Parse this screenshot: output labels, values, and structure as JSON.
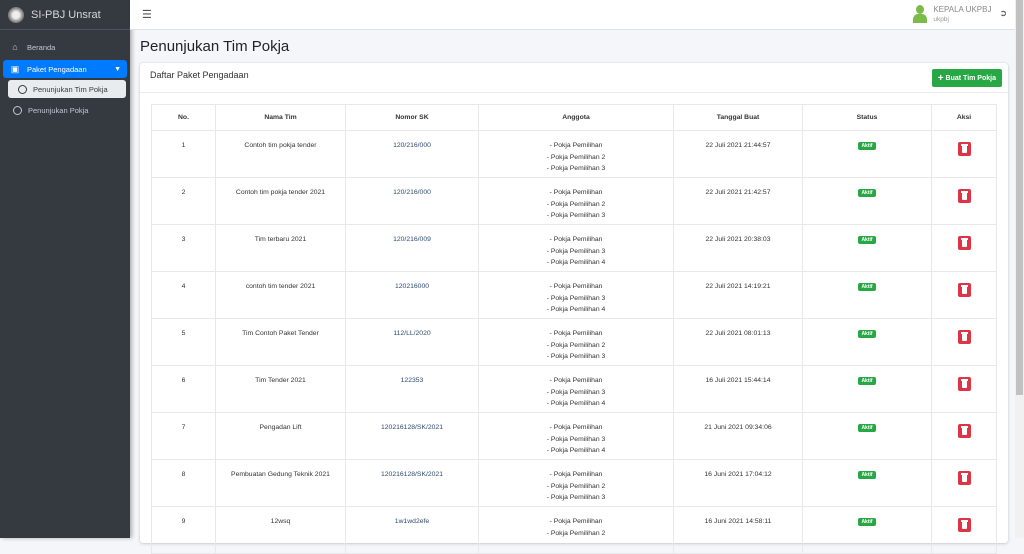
{
  "app": {
    "brand": "SI-PBJ Unsrat"
  },
  "sidebar": {
    "items": [
      {
        "label": "Beranda",
        "icon": "home-icon"
      },
      {
        "label": "Paket Pengadaan",
        "icon": "box-icon",
        "active": true
      },
      {
        "label": "Penunjukan Tim Pokja",
        "icon": "circle-icon",
        "current": true
      },
      {
        "label": "Penunjukan Pokja",
        "icon": "circle-icon"
      }
    ]
  },
  "header": {
    "user_name": "KEPALA UKPBJ",
    "user_role": "ukpbj"
  },
  "page": {
    "title": "Penunjukan Tim Pokja",
    "card_title": "Daftar Paket Pengadaan",
    "add_button": "Buat Tim Pokja"
  },
  "table": {
    "columns": [
      "No.",
      "Nama Tim",
      "Nomor SK",
      "Anggota",
      "Tanggal Buat",
      "Status",
      "Aksi"
    ],
    "rows": [
      {
        "no": "1",
        "nama": "Contoh tim pokja tender",
        "sk": "120/216/000",
        "anggota": [
          "- Pokja Pemilihan",
          "- Pokja Pemilihan 2",
          "- Pokja Pemilihan 3"
        ],
        "tanggal": "22 Juli 2021 21:44:57",
        "status": "Aktif"
      },
      {
        "no": "2",
        "nama": "Contoh tim pokja tender 2021",
        "sk": "120/216/000",
        "anggota": [
          "- Pokja Pemilihan",
          "- Pokja Pemilihan 2",
          "- Pokja Pemilihan 3"
        ],
        "tanggal": "22 Juli 2021 21:42:57",
        "status": "Aktif"
      },
      {
        "no": "3",
        "nama": "Tim terbaru 2021",
        "sk": "120/216/009",
        "anggota": [
          "- Pokja Pemilihan",
          "- Pokja Pemilihan 3",
          "- Pokja Pemilihan 4"
        ],
        "tanggal": "22 Juli 2021 20:38:03",
        "status": "Aktif"
      },
      {
        "no": "4",
        "nama": "contoh tim tender 2021",
        "sk": "120216000",
        "anggota": [
          "- Pokja Pemilihan",
          "- Pokja Pemilihan 3",
          "- Pokja Pemilihan 4"
        ],
        "tanggal": "22 Juli 2021 14:19:21",
        "status": "Aktif"
      },
      {
        "no": "5",
        "nama": "Tim Contoh Paket Tender",
        "sk": "112/LL/2020",
        "anggota": [
          "- Pokja Pemilihan",
          "- Pokja Pemilihan 2",
          "- Pokja Pemilihan 3"
        ],
        "tanggal": "22 Juli 2021 08:01:13",
        "status": "Aktif"
      },
      {
        "no": "6",
        "nama": "Tim Tender 2021",
        "sk": "122353",
        "anggota": [
          "- Pokja Pemilihan",
          "- Pokja Pemilihan 3",
          "- Pokja Pemilihan 4"
        ],
        "tanggal": "16 Juli 2021 15:44:14",
        "status": "Aktif"
      },
      {
        "no": "7",
        "nama": "Pengadan Lift",
        "sk": "120216128/SK/2021",
        "anggota": [
          "- Pokja Pemilihan",
          "- Pokja Pemilihan 3",
          "- Pokja Pemilihan 4"
        ],
        "tanggal": "21 Juni 2021 09:34:06",
        "status": "Aktif"
      },
      {
        "no": "8",
        "nama": "Pembuatan Gedung Teknik 2021",
        "sk": "120216128/SK/2021",
        "anggota": [
          "- Pokja Pemilihan",
          "- Pokja Pemilihan 2",
          "- Pokja Pemilihan 3"
        ],
        "tanggal": "16 Juni 2021 17:04:12",
        "status": "Aktif"
      },
      {
        "no": "9",
        "nama": "12wsq",
        "sk": "1w1wd2efe",
        "anggota": [
          "- Pokja Pemilihan",
          "- Pokja Pemilihan 2"
        ],
        "tanggal": "16 Juni 2021 14:58:11",
        "status": "Aktif"
      }
    ]
  },
  "colors": {
    "sidebar": "#343a40",
    "primary": "#007bff",
    "success": "#28a745",
    "danger": "#dc3545"
  }
}
